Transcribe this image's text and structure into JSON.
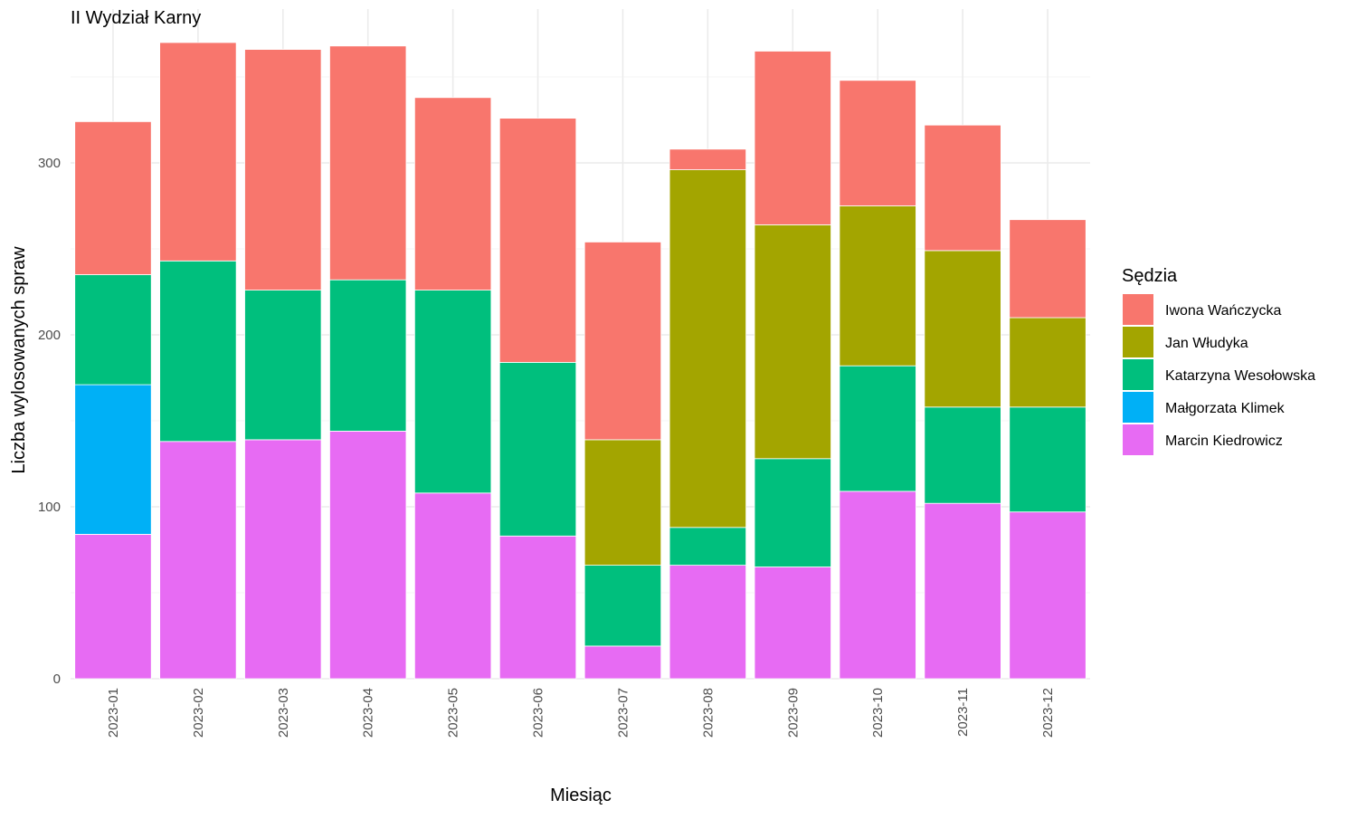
{
  "chart_data": {
    "type": "bar",
    "stacked": true,
    "title": "II Wydział Karny",
    "xlabel": "Miesiąc",
    "ylabel": "Liczba wylosowanych spraw",
    "ylim": [
      0,
      375
    ],
    "y_ticks": [
      0,
      100,
      200,
      300
    ],
    "grid": true,
    "legend_title": "Sędzia",
    "legend_position": "right",
    "categories": [
      "2023-01",
      "2023-02",
      "2023-03",
      "2023-04",
      "2023-05",
      "2023-06",
      "2023-07",
      "2023-08",
      "2023-09",
      "2023-10",
      "2023-11",
      "2023-12"
    ],
    "series": [
      {
        "name": "Iwona Wańczycka",
        "color": "#F8766D",
        "values": [
          89,
          127,
          140,
          136,
          112,
          142,
          115,
          12,
          101,
          73,
          73,
          57
        ]
      },
      {
        "name": "Jan Włudyka",
        "color": "#A3A500",
        "values": [
          0,
          0,
          0,
          0,
          0,
          0,
          73,
          208,
          136,
          93,
          91,
          52
        ]
      },
      {
        "name": "Katarzyna Wesołowska",
        "color": "#00BF7D",
        "values": [
          64,
          105,
          87,
          88,
          118,
          101,
          47,
          22,
          63,
          73,
          56,
          61
        ]
      },
      {
        "name": "Małgorzata Klimek",
        "color": "#00B0F6",
        "values": [
          87,
          0,
          0,
          0,
          0,
          0,
          0,
          0,
          0,
          0,
          0,
          0
        ]
      },
      {
        "name": "Marcin Kiedrowicz",
        "color": "#E76BF3",
        "values": [
          84,
          138,
          139,
          144,
          108,
          83,
          19,
          66,
          65,
          109,
          102,
          97
        ]
      }
    ]
  }
}
